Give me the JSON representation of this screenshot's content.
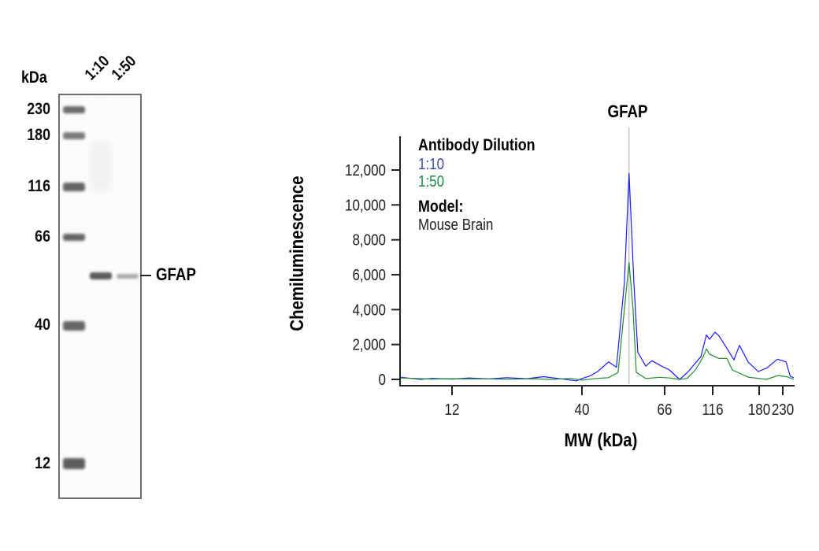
{
  "gel": {
    "unit_label": "kDa",
    "lanes": [
      "1:10",
      "1:50"
    ],
    "markers": [
      "230",
      "180",
      "116",
      "66",
      "40",
      "12"
    ],
    "band_label": "GFAP"
  },
  "chart_data": {
    "type": "line",
    "title": "GFAP",
    "xlabel": "MW (kDa)",
    "ylabel": "Chemiluminescence",
    "x_ticks": [
      12,
      40,
      66,
      116,
      180,
      230
    ],
    "x_tick_labels": [
      "12",
      "40",
      "66",
      "116",
      "180",
      "230"
    ],
    "y_ticks": [
      0,
      2000,
      4000,
      6000,
      8000,
      10000,
      12000
    ],
    "y_tick_labels": [
      "0",
      "2,000",
      "4,000",
      "6,000",
      "8,000",
      "10,000",
      "12,000"
    ],
    "xlim": [
      7.5,
      257
    ],
    "ylim": [
      0,
      13000
    ],
    "grid": false,
    "marker_line_at": 53.2,
    "legend": {
      "title": "Antibody Dilution",
      "entries": [
        "1:10",
        "1:50"
      ],
      "model_title": "Model:",
      "model_value": "Mouse Brain",
      "placement": "top-left"
    },
    "series": [
      {
        "name": "1:10",
        "color": "#1a1aff",
        "x": [
          7.5,
          9,
          10,
          12,
          14,
          17,
          20,
          24,
          28,
          33,
          38,
          40,
          42,
          44,
          47,
          49.3,
          51.7,
          53.2,
          54.8,
          56.1,
          58.9,
          61.1,
          64.8,
          69.8,
          78.7,
          86.3,
          101,
          107.7,
          111.8,
          118.6,
          123,
          129.7,
          141.8,
          149.4,
          162.2,
          178.3,
          195,
          217.5,
          237.8,
          247.9,
          257
        ],
        "y": [
          120,
          0,
          60,
          20,
          80,
          30,
          100,
          40,
          160,
          30,
          -80,
          50,
          200,
          450,
          1000,
          700,
          5500,
          11800,
          5500,
          1550,
          760,
          1070,
          760,
          540,
          0,
          400,
          1300,
          2550,
          2300,
          2700,
          2500,
          2000,
          1120,
          1950,
          1000,
          450,
          650,
          1160,
          1000,
          180,
          100
        ]
      },
      {
        "name": "1:50",
        "color": "#1f8a2e",
        "x": [
          7.5,
          10,
          12,
          16,
          20,
          25,
          30,
          36,
          40,
          44,
          47,
          49.8,
          51.7,
          53.2,
          54.5,
          55.6,
          58.9,
          64,
          70,
          78.7,
          86,
          94.7,
          103.8,
          107.7,
          111.8,
          123.1,
          132.6,
          139.7,
          162.2,
          193.9,
          219.2,
          240,
          257
        ],
        "y": [
          80,
          20,
          40,
          30,
          10,
          40,
          0,
          60,
          -40,
          60,
          100,
          400,
          4000,
          6700,
          4000,
          400,
          50,
          120,
          80,
          0,
          60,
          540,
          1300,
          1750,
          1450,
          1200,
          1200,
          540,
          130,
          0,
          220,
          150,
          0
        ]
      }
    ]
  }
}
